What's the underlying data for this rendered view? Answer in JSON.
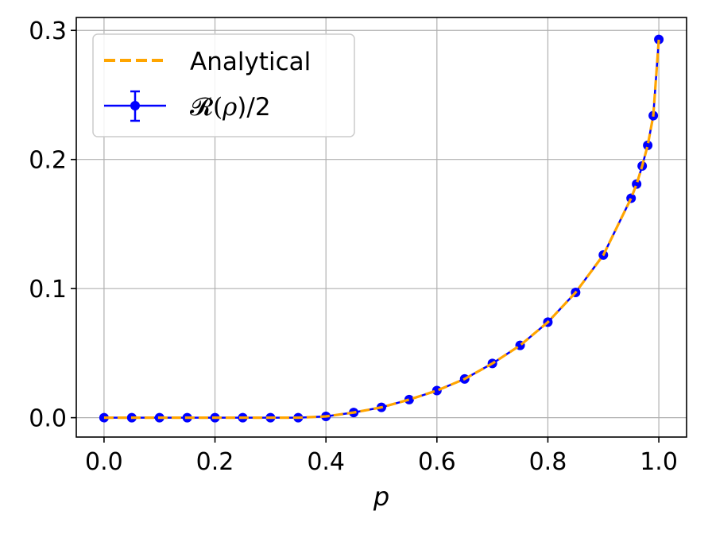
{
  "chart_data": {
    "type": "line",
    "xlabel": "p",
    "ylabel": "",
    "xlim": [
      -0.05,
      1.05
    ],
    "ylim": [
      -0.015,
      0.31
    ],
    "xticks": [
      0.0,
      0.2,
      0.4,
      0.6,
      0.8,
      1.0
    ],
    "xtick_labels": [
      "0.0",
      "0.2",
      "0.4",
      "0.6",
      "0.8",
      "1.0"
    ],
    "yticks": [
      0.0,
      0.1,
      0.2,
      0.3
    ],
    "ytick_labels": [
      "0.0",
      "0.1",
      "0.2",
      "0.3"
    ],
    "grid": true,
    "legend_position": "upper-left",
    "series": [
      {
        "name": "Analytical",
        "style": "dashed-line",
        "color": "#ffa500",
        "x": [
          0.0,
          0.05,
          0.1,
          0.15,
          0.2,
          0.25,
          0.3,
          0.35,
          0.4,
          0.45,
          0.5,
          0.55,
          0.6,
          0.65,
          0.7,
          0.75,
          0.8,
          0.85,
          0.9,
          0.95,
          0.96,
          0.97,
          0.98,
          0.99,
          1.0
        ],
        "y": [
          0.0,
          0.0,
          0.0,
          0.0,
          0.0,
          0.0,
          0.0,
          0.0,
          0.001,
          0.004,
          0.008,
          0.014,
          0.021,
          0.03,
          0.042,
          0.056,
          0.074,
          0.097,
          0.126,
          0.17,
          0.181,
          0.195,
          0.211,
          0.234,
          0.293
        ]
      },
      {
        "name_prefix": "𝓡(",
        "name_symbol": "ρ",
        "name_suffix": ")/2",
        "style": "line-marker-errorbar",
        "color": "#0000ff",
        "x": [
          0.0,
          0.05,
          0.1,
          0.15,
          0.2,
          0.25,
          0.3,
          0.35,
          0.4,
          0.45,
          0.5,
          0.55,
          0.6,
          0.65,
          0.7,
          0.75,
          0.8,
          0.85,
          0.9,
          0.95,
          0.96,
          0.97,
          0.98,
          0.99,
          1.0
        ],
        "y": [
          0.0,
          0.0,
          0.0,
          0.0,
          0.0,
          0.0,
          0.0,
          0.0,
          0.001,
          0.004,
          0.008,
          0.014,
          0.021,
          0.03,
          0.042,
          0.056,
          0.074,
          0.097,
          0.126,
          0.17,
          0.181,
          0.195,
          0.211,
          0.234,
          0.293
        ]
      }
    ]
  }
}
